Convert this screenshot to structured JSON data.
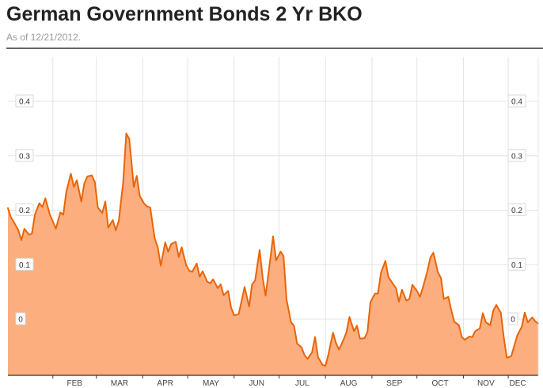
{
  "header": {
    "title": "German Government Bonds 2 Yr BKO",
    "subtitle": "As of 12/21/2012."
  },
  "colors": {
    "line": "#e8650a",
    "fill": "#fcae7e",
    "grid": "#e4e4e4",
    "axis": "#333333",
    "label_border": "#d8d8d8"
  },
  "chart_data": {
    "type": "area",
    "title": "German Government Bonds 2 Yr BKO",
    "subtitle": "As of 12/21/2012.",
    "xlabel": "",
    "ylabel": "",
    "y_ticks": [
      {
        "value": 0.4,
        "label": "0.4"
      },
      {
        "value": 0.3,
        "label": "0.3"
      },
      {
        "value": 0.2,
        "label": "0.2"
      },
      {
        "value": 0.1,
        "label": "0.1"
      },
      {
        "value": 0.0,
        "label": "0"
      }
    ],
    "ylim": [
      -0.1,
      0.5
    ],
    "x_range": [
      "2012-01-02",
      "2012-12-21"
    ],
    "x_month_labels": [
      {
        "label": "FEB",
        "date": "2012-02-01"
      },
      {
        "label": "MAR",
        "date": "2012-03-01"
      },
      {
        "label": "APR",
        "date": "2012-04-01"
      },
      {
        "label": "MAY",
        "date": "2012-05-01"
      },
      {
        "label": "JUN",
        "date": "2012-06-01"
      },
      {
        "label": "JUL",
        "date": "2012-07-01"
      },
      {
        "label": "AUG",
        "date": "2012-08-01"
      },
      {
        "label": "SEP",
        "date": "2012-09-01"
      },
      {
        "label": "OCT",
        "date": "2012-10-01"
      },
      {
        "label": "NOV",
        "date": "2012-11-01"
      },
      {
        "label": "DEC",
        "date": "2012-12-01"
      }
    ],
    "grid": true,
    "series": [
      {
        "points": [
          [
            "2012-01-02",
            0.204
          ],
          [
            "2012-01-04",
            0.187
          ],
          [
            "2012-01-06",
            0.178
          ],
          [
            "2012-01-09",
            0.163
          ],
          [
            "2012-01-11",
            0.145
          ],
          [
            "2012-01-13",
            0.166
          ],
          [
            "2012-01-16",
            0.155
          ],
          [
            "2012-01-18",
            0.157
          ],
          [
            "2012-01-20",
            0.192
          ],
          [
            "2012-01-23",
            0.213
          ],
          [
            "2012-01-25",
            0.206
          ],
          [
            "2012-01-27",
            0.222
          ],
          [
            "2012-01-30",
            0.192
          ],
          [
            "2012-02-01",
            0.179
          ],
          [
            "2012-02-03",
            0.166
          ],
          [
            "2012-02-06",
            0.196
          ],
          [
            "2012-02-08",
            0.192
          ],
          [
            "2012-02-10",
            0.234
          ],
          [
            "2012-02-13",
            0.267
          ],
          [
            "2012-02-15",
            0.243
          ],
          [
            "2012-02-17",
            0.255
          ],
          [
            "2012-02-20",
            0.216
          ],
          [
            "2012-02-22",
            0.249
          ],
          [
            "2012-02-24",
            0.262
          ],
          [
            "2012-02-27",
            0.264
          ],
          [
            "2012-02-29",
            0.252
          ],
          [
            "2012-03-02",
            0.205
          ],
          [
            "2012-03-05",
            0.195
          ],
          [
            "2012-03-07",
            0.216
          ],
          [
            "2012-03-09",
            0.168
          ],
          [
            "2012-03-12",
            0.182
          ],
          [
            "2012-03-14",
            0.163
          ],
          [
            "2012-03-16",
            0.181
          ],
          [
            "2012-03-19",
            0.253
          ],
          [
            "2012-03-21",
            0.341
          ],
          [
            "2012-03-23",
            0.331
          ],
          [
            "2012-03-26",
            0.243
          ],
          [
            "2012-03-28",
            0.263
          ],
          [
            "2012-03-30",
            0.226
          ],
          [
            "2012-04-02",
            0.212
          ],
          [
            "2012-04-04",
            0.207
          ],
          [
            "2012-04-06",
            0.205
          ],
          [
            "2012-04-09",
            0.148
          ],
          [
            "2012-04-11",
            0.132
          ],
          [
            "2012-04-13",
            0.098
          ],
          [
            "2012-04-16",
            0.141
          ],
          [
            "2012-04-18",
            0.124
          ],
          [
            "2012-04-20",
            0.138
          ],
          [
            "2012-04-23",
            0.142
          ],
          [
            "2012-04-25",
            0.114
          ],
          [
            "2012-04-27",
            0.132
          ],
          [
            "2012-04-30",
            0.099
          ],
          [
            "2012-05-02",
            0.089
          ],
          [
            "2012-05-04",
            0.087
          ],
          [
            "2012-05-07",
            0.102
          ],
          [
            "2012-05-09",
            0.078
          ],
          [
            "2012-05-11",
            0.088
          ],
          [
            "2012-05-14",
            0.069
          ],
          [
            "2012-05-16",
            0.066
          ],
          [
            "2012-05-18",
            0.073
          ],
          [
            "2012-05-21",
            0.057
          ],
          [
            "2012-05-23",
            0.064
          ],
          [
            "2012-05-25",
            0.044
          ],
          [
            "2012-05-28",
            0.052
          ],
          [
            "2012-05-30",
            0.021
          ],
          [
            "2012-06-01",
            0.007
          ],
          [
            "2012-06-04",
            0.009
          ],
          [
            "2012-06-06",
            0.034
          ],
          [
            "2012-06-08",
            0.059
          ],
          [
            "2012-06-11",
            0.023
          ],
          [
            "2012-06-13",
            0.064
          ],
          [
            "2012-06-15",
            0.071
          ],
          [
            "2012-06-18",
            0.127
          ],
          [
            "2012-06-20",
            0.077
          ],
          [
            "2012-06-22",
            0.043
          ],
          [
            "2012-06-25",
            0.107
          ],
          [
            "2012-06-27",
            0.152
          ],
          [
            "2012-06-29",
            0.108
          ],
          [
            "2012-07-02",
            0.124
          ],
          [
            "2012-07-04",
            0.116
          ],
          [
            "2012-07-06",
            0.036
          ],
          [
            "2012-07-09",
            -0.006
          ],
          [
            "2012-07-11",
            -0.012
          ],
          [
            "2012-07-13",
            -0.045
          ],
          [
            "2012-07-16",
            -0.052
          ],
          [
            "2012-07-18",
            -0.066
          ],
          [
            "2012-07-20",
            -0.073
          ],
          [
            "2012-07-23",
            -0.061
          ],
          [
            "2012-07-25",
            -0.033
          ],
          [
            "2012-07-27",
            -0.07
          ],
          [
            "2012-07-30",
            -0.084
          ],
          [
            "2012-08-01",
            -0.086
          ],
          [
            "2012-08-03",
            -0.064
          ],
          [
            "2012-08-06",
            -0.025
          ],
          [
            "2012-08-08",
            -0.044
          ],
          [
            "2012-08-10",
            -0.056
          ],
          [
            "2012-08-13",
            -0.038
          ],
          [
            "2012-08-15",
            -0.024
          ],
          [
            "2012-08-17",
            0.004
          ],
          [
            "2012-08-20",
            -0.022
          ],
          [
            "2012-08-22",
            -0.012
          ],
          [
            "2012-08-24",
            -0.036
          ],
          [
            "2012-08-27",
            -0.035
          ],
          [
            "2012-08-29",
            -0.024
          ],
          [
            "2012-08-31",
            0.031
          ],
          [
            "2012-09-03",
            0.047
          ],
          [
            "2012-09-05",
            0.047
          ],
          [
            "2012-09-07",
            0.085
          ],
          [
            "2012-09-10",
            0.107
          ],
          [
            "2012-09-12",
            0.077
          ],
          [
            "2012-09-14",
            0.069
          ],
          [
            "2012-09-17",
            0.057
          ],
          [
            "2012-09-19",
            0.032
          ],
          [
            "2012-09-21",
            0.054
          ],
          [
            "2012-09-24",
            0.034
          ],
          [
            "2012-09-26",
            0.037
          ],
          [
            "2012-09-28",
            0.063
          ],
          [
            "2012-10-01",
            0.052
          ],
          [
            "2012-10-03",
            0.041
          ],
          [
            "2012-10-05",
            0.058
          ],
          [
            "2012-10-08",
            0.088
          ],
          [
            "2012-10-10",
            0.113
          ],
          [
            "2012-10-12",
            0.122
          ],
          [
            "2012-10-15",
            0.086
          ],
          [
            "2012-10-17",
            0.076
          ],
          [
            "2012-10-19",
            0.037
          ],
          [
            "2012-10-22",
            0.041
          ],
          [
            "2012-10-24",
            0.016
          ],
          [
            "2012-10-26",
            -0.005
          ],
          [
            "2012-10-29",
            -0.011
          ],
          [
            "2012-10-31",
            -0.033
          ],
          [
            "2012-11-02",
            -0.038
          ],
          [
            "2012-11-05",
            -0.032
          ],
          [
            "2012-11-07",
            -0.033
          ],
          [
            "2012-11-09",
            -0.022
          ],
          [
            "2012-11-12",
            -0.017
          ],
          [
            "2012-11-14",
            0.011
          ],
          [
            "2012-11-16",
            -0.006
          ],
          [
            "2012-11-19",
            -0.011
          ],
          [
            "2012-11-21",
            0.016
          ],
          [
            "2012-11-23",
            0.026
          ],
          [
            "2012-11-26",
            0.012
          ],
          [
            "2012-11-28",
            -0.034
          ],
          [
            "2012-11-30",
            -0.071
          ],
          [
            "2012-12-03",
            -0.068
          ],
          [
            "2012-12-05",
            -0.049
          ],
          [
            "2012-12-07",
            -0.03
          ],
          [
            "2012-12-10",
            -0.014
          ],
          [
            "2012-12-12",
            0.012
          ],
          [
            "2012-12-14",
            -0.006
          ],
          [
            "2012-12-17",
            0.003
          ],
          [
            "2012-12-19",
            -0.004
          ],
          [
            "2012-12-21",
            -0.008
          ]
        ]
      }
    ]
  }
}
